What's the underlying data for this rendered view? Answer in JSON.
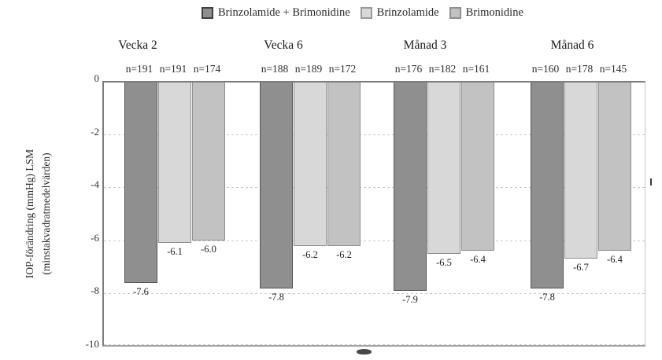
{
  "legend": {
    "items": [
      {
        "label": "Brinzolamide + Brimonidine",
        "swatch": "dark-gray-square-icon",
        "color": "#8f8f8f"
      },
      {
        "label": "Brinzolamide",
        "swatch": "light-gray-square-icon",
        "color": "#d8d8d8"
      },
      {
        "label": "Brimonidine",
        "swatch": "medium-gray-square-icon",
        "color": "#c2c2c2"
      }
    ]
  },
  "y_axis": {
    "title_line1": "IOP-förändring (mmHg) LSM",
    "title_line2": "(minstakvadratmedelvärden)",
    "ticks": [
      "0",
      "-2",
      "-4",
      "-6",
      "-8",
      "-10"
    ]
  },
  "colors": {
    "combo_fill": "#8f8f8f",
    "brinzolamide_fill": "#d8d8d8",
    "brimonidine_fill": "#c2c2c2",
    "gridline": "#c9c9c9",
    "axis": "#7d7d7d"
  },
  "plot": {
    "groups": [
      {
        "title": "Vecka 2",
        "bars": [
          {
            "series": "Brinzolamide + Brimonidine",
            "n_label": "n=191",
            "value": -7.6,
            "value_label": "-7.6"
          },
          {
            "series": "Brinzolamide",
            "n_label": "n=191",
            "value": -6.1,
            "value_label": "-6.1"
          },
          {
            "series": "Brimonidine",
            "n_label": "n=174",
            "value": -6.0,
            "value_label": "-6.0"
          }
        ]
      },
      {
        "title": "Vecka 6",
        "bars": [
          {
            "series": "Brinzolamide + Brimonidine",
            "n_label": "n=188",
            "value": -7.8,
            "value_label": "-7.8"
          },
          {
            "series": "Brinzolamide",
            "n_label": "n=189",
            "value": -6.2,
            "value_label": "-6.2"
          },
          {
            "series": "Brimonidine",
            "n_label": "n=172",
            "value": -6.2,
            "value_label": "-6.2"
          }
        ]
      },
      {
        "title": "Månad 3",
        "bars": [
          {
            "series": "Brinzolamide + Brimonidine",
            "n_label": "n=176",
            "value": -7.9,
            "value_label": "-7.9"
          },
          {
            "series": "Brinzolamide",
            "n_label": "n=182",
            "value": -6.5,
            "value_label": "-6.5"
          },
          {
            "series": "Brimonidine",
            "n_label": "n=161",
            "value": -6.4,
            "value_label": "-6.4"
          }
        ]
      },
      {
        "title": "Månad 6",
        "bars": [
          {
            "series": "Brinzolamide + Brimonidine",
            "n_label": "n=160",
            "value": -7.8,
            "value_label": "-7.8"
          },
          {
            "series": "Brinzolamide",
            "n_label": "n=178",
            "value": -6.7,
            "value_label": "-6.7"
          },
          {
            "series": "Brimonidine",
            "n_label": "n=145",
            "value": -6.4,
            "value_label": "-6.4"
          }
        ]
      }
    ]
  },
  "chart_data": {
    "type": "bar",
    "categories": [
      "Vecka 2",
      "Vecka 6",
      "Månad 3",
      "Månad 6"
    ],
    "series": [
      {
        "name": "Brinzolamide + Brimonidine",
        "values": [
          -7.6,
          -7.8,
          -7.9,
          -7.8
        ],
        "n": [
          191,
          188,
          176,
          160
        ]
      },
      {
        "name": "Brinzolamide",
        "values": [
          -6.1,
          -6.2,
          -6.5,
          -6.7
        ],
        "n": [
          191,
          189,
          182,
          178
        ]
      },
      {
        "name": "Brimonidine",
        "values": [
          -6.0,
          -6.2,
          -6.4,
          -6.4
        ],
        "n": [
          174,
          172,
          161,
          145
        ]
      }
    ],
    "title": "",
    "xlabel": "",
    "ylabel": "IOP-förändring (mmHg) LSM (minstakvadratmedelvärden)",
    "ylim": [
      -10,
      0
    ],
    "grid": true,
    "legend_position": "top"
  }
}
